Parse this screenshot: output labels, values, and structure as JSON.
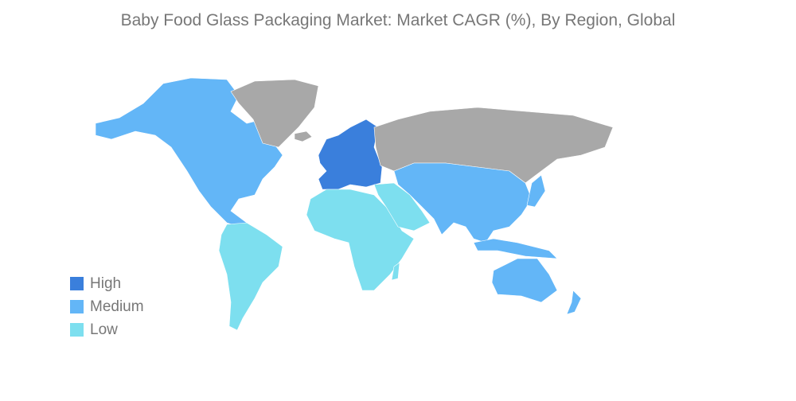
{
  "title": "Baby Food Glass Packaging Market: Market CAGR (%), By Region, Global",
  "colors": {
    "high": "#3a7fdc",
    "medium": "#63b6f7",
    "low": "#7ddfef",
    "no_data": "#a8a8a8"
  },
  "legend": [
    {
      "label": "High",
      "color": "#3a7fdc"
    },
    {
      "label": "Medium",
      "color": "#63b6f7"
    },
    {
      "label": "Low",
      "color": "#7ddfef"
    }
  ],
  "regions": {
    "north_america": "medium",
    "south_america": "low",
    "europe": "high",
    "africa": "low",
    "middle_east": "low",
    "asia_pacific": "medium",
    "russia": "no_data",
    "greenland": "no_data"
  }
}
